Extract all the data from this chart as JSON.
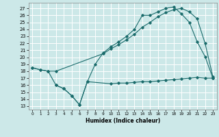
{
  "xlabel": "Humidex (Indice chaleur)",
  "bg_color": "#cce8e8",
  "grid_color": "#ffffff",
  "line_color": "#1a6b6b",
  "xlim": [
    -0.5,
    23.5
  ],
  "ylim": [
    12.5,
    27.8
  ],
  "xticks": [
    0,
    1,
    2,
    3,
    4,
    5,
    6,
    7,
    8,
    9,
    10,
    11,
    12,
    13,
    14,
    15,
    16,
    17,
    18,
    19,
    20,
    21,
    22,
    23
  ],
  "yticks": [
    13,
    14,
    15,
    16,
    17,
    18,
    19,
    20,
    21,
    22,
    23,
    24,
    25,
    26,
    27
  ],
  "s1x": [
    0,
    1,
    2,
    3,
    4,
    5,
    6,
    7,
    8,
    9,
    10,
    11,
    12,
    13,
    14,
    15,
    16,
    17,
    18,
    19,
    20,
    21,
    22,
    23
  ],
  "s1y": [
    18.5,
    18.2,
    18.0,
    16.0,
    15.5,
    14.5,
    13.2,
    16.5,
    19.0,
    20.6,
    21.5,
    22.2,
    23.0,
    24.0,
    26.0,
    26.0,
    26.5,
    27.0,
    27.2,
    26.2,
    25.0,
    22.2,
    20.1,
    17.0
  ],
  "s2x": [
    0,
    1,
    2,
    3,
    9,
    10,
    11,
    12,
    13,
    14,
    15,
    16,
    17,
    18,
    19,
    20,
    21,
    22,
    23
  ],
  "s2y": [
    18.5,
    18.2,
    18.0,
    18.0,
    20.5,
    21.2,
    21.8,
    22.5,
    23.3,
    24.3,
    25.0,
    25.8,
    26.4,
    26.8,
    27.0,
    26.5,
    25.5,
    22.0,
    17.2
  ],
  "s3x": [
    3,
    4,
    5,
    6,
    7,
    10,
    11,
    12,
    13,
    14,
    15,
    16,
    17,
    18,
    19,
    20,
    21,
    22,
    23
  ],
  "s3y": [
    16.0,
    15.5,
    14.5,
    13.2,
    16.5,
    16.2,
    16.3,
    16.3,
    16.4,
    16.5,
    16.5,
    16.6,
    16.7,
    16.8,
    16.9,
    17.0,
    17.1,
    17.0,
    17.0
  ]
}
